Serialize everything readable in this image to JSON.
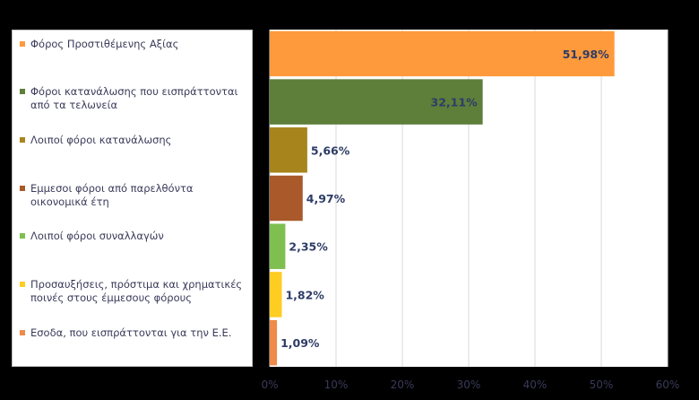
{
  "chart_data": {
    "type": "bar",
    "orientation": "horizontal",
    "categories": [
      "Φόρος Προστιθέμενης Αξίας",
      "Φόροι κατανάλωσης που εισπράττονται από τα τελωνεία",
      "Λοιποί φόροι κατανάλωσης",
      "Εμμεσοι φόροι από παρελθόντα οικονομικά έτη",
      "Λοιποί φόροι συναλλαγών",
      "Προσαυξήσεις, πρόστιμα και χρηματικές ποινές στους έμμεσους φόρους",
      "Εσοδα, που εισπράττονται για την Ε.Ε."
    ],
    "values": [
      51.98,
      32.11,
      5.66,
      4.97,
      2.35,
      1.82,
      1.09
    ],
    "data_labels": [
      "51,98%",
      "32,11%",
      "5,66%",
      "4,97%",
      "2,35%",
      "1,82%",
      "1,09%"
    ],
    "colors": [
      "#ff9a3c",
      "#5e7f3a",
      "#a8841c",
      "#a9592a",
      "#7fbf50",
      "#ffcc22",
      "#ef8a4a"
    ],
    "legend_position": "left",
    "xlim": [
      0,
      60
    ],
    "x_ticks": [
      0,
      10,
      20,
      30,
      40,
      50,
      60
    ],
    "x_tick_labels": [
      "0%",
      "10%",
      "20%",
      "30%",
      "40%",
      "50%",
      "60%"
    ],
    "grid": true,
    "title": "",
    "xlabel": "",
    "ylabel": ""
  }
}
